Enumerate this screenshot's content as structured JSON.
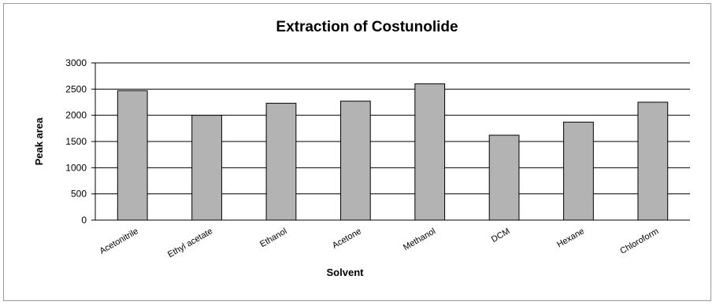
{
  "chart_data": {
    "type": "bar",
    "title": "Extraction of Costunolide",
    "xlabel": "Solvent",
    "ylabel": "Peak area",
    "categories": [
      "Acetonitrile",
      "Ethyl acetate",
      "Ethanol",
      "Acetone",
      "Methanol",
      "DCM",
      "Hexane",
      "Chloroform"
    ],
    "values": [
      2470,
      2000,
      2230,
      2270,
      2600,
      1620,
      1870,
      2250
    ],
    "ylim": [
      0,
      3000
    ],
    "yticks": [
      "0",
      "500",
      "1000",
      "1500",
      "2000",
      "2500",
      "3000"
    ],
    "grid": true,
    "legend": "none",
    "colors": {
      "bar": "#b3b3b3",
      "bar_stroke": "#000000",
      "grid": "#000000",
      "frame": "#9a9a9a"
    }
  }
}
